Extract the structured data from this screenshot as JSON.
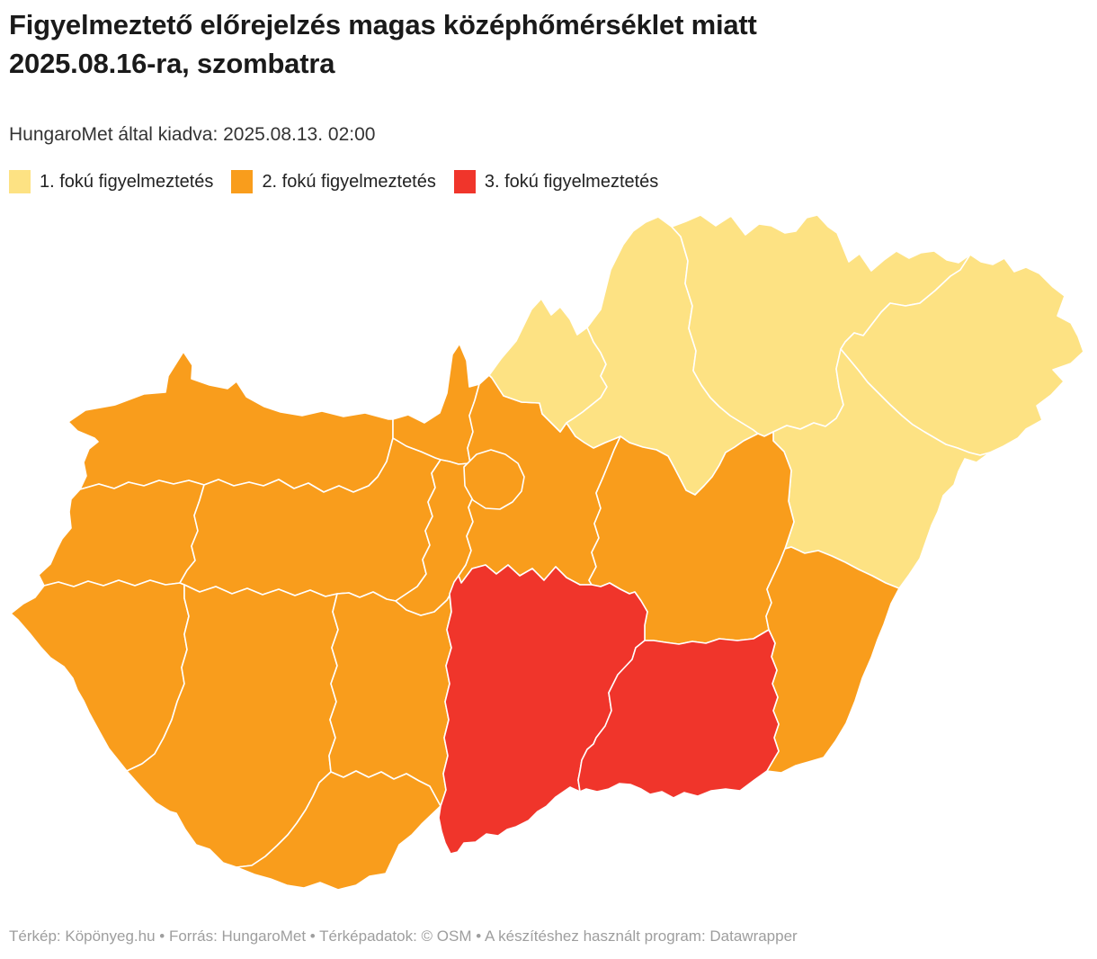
{
  "header": {
    "title_line1": "Figyelmeztető előrejelzés magas középhőmérséklet miatt",
    "title_line2": "2025.08.16-ra, szombatra",
    "subtitle": "HungaroMet által kiadva: 2025.08.13. 02:00"
  },
  "legend": {
    "items": [
      {
        "level": 1,
        "label": "1. fokú figyelmeztetés",
        "color": "#FDE283"
      },
      {
        "level": 2,
        "label": "2. fokú figyelmeztetés",
        "color": "#F99D1C"
      },
      {
        "level": 3,
        "label": "3. fokú figyelmeztetés",
        "color": "#F0352B"
      }
    ],
    "level_colors": {
      "1": "#FDE283",
      "2": "#F99D1C",
      "3": "#F0352B"
    }
  },
  "chart_data": {
    "type": "choropleth-map",
    "region": "Hungary counties",
    "value_label": "figyelmeztetési fokozat",
    "counties": [
      {
        "id": "gyor-moson-sopron",
        "name": "Győr-Moson-Sopron",
        "level": 2
      },
      {
        "id": "komarom-esztergom",
        "name": "Komárom-Esztergom",
        "level": 2
      },
      {
        "id": "vas",
        "name": "Vas",
        "level": 2
      },
      {
        "id": "veszprem",
        "name": "Veszprém",
        "level": 2
      },
      {
        "id": "zala",
        "name": "Zala",
        "level": 2
      },
      {
        "id": "somogy",
        "name": "Somogy",
        "level": 2
      },
      {
        "id": "tolna",
        "name": "Tolna",
        "level": 2
      },
      {
        "id": "baranya",
        "name": "Baranya",
        "level": 2
      },
      {
        "id": "fejer",
        "name": "Fejér",
        "level": 2
      },
      {
        "id": "pest",
        "name": "Pest",
        "level": 2
      },
      {
        "id": "budapest",
        "name": "Budapest",
        "level": 2
      },
      {
        "id": "nograd",
        "name": "Nógrád",
        "level": 1
      },
      {
        "id": "heves",
        "name": "Heves",
        "level": 1
      },
      {
        "id": "borsod-abauj-zemplen",
        "name": "Borsod-Abaúj-Zemplén",
        "level": 1
      },
      {
        "id": "szabolcs-szatmar-bereg",
        "name": "Szabolcs-Szatmár-Bereg",
        "level": 1
      },
      {
        "id": "hajdu-bihar",
        "name": "Hajdú-Bihar",
        "level": 1
      },
      {
        "id": "jasz-nagykun-szolnok",
        "name": "Jász-Nagykun-Szolnok",
        "level": 2
      },
      {
        "id": "bekes",
        "name": "Békés",
        "level": 2
      },
      {
        "id": "bacs-kiskun",
        "name": "Bács-Kiskun",
        "level": 3
      },
      {
        "id": "csongrad-csanad",
        "name": "Csongrád-Csanád",
        "level": 3
      }
    ]
  },
  "footer": {
    "text": "Térkép: Köpönyeg.hu • Forrás: HungaroMet • Térképadatok: © OSM  • A készítéshez használt program: Datawrapper"
  }
}
